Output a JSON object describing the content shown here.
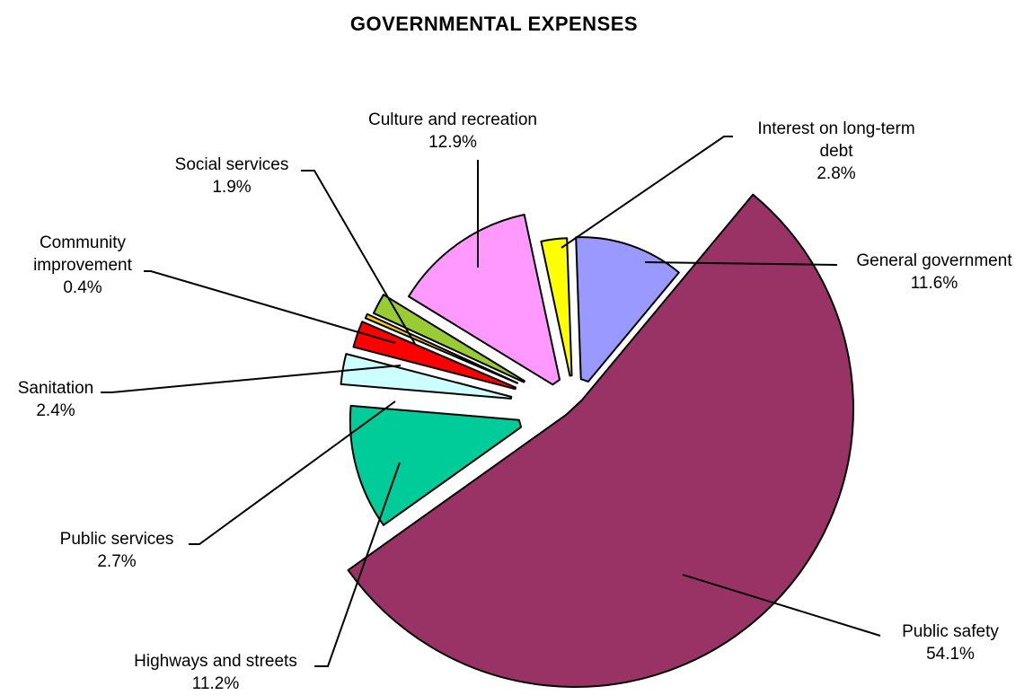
{
  "chart_data": {
    "type": "pie",
    "title": "GOVERNMENTAL EXPENSES",
    "exploded": true,
    "slices": [
      {
        "label": "General government",
        "value": 11.6,
        "value_label": "11.6%",
        "color": "#9999ff"
      },
      {
        "label": "Public safety",
        "value": 54.1,
        "value_label": "54.1%",
        "color": "#993366"
      },
      {
        "label": "Highways and streets",
        "value": 11.2,
        "value_label": "11.2%",
        "color": "#00cc99"
      },
      {
        "label": "Public services",
        "value": 2.7,
        "value_label": "2.7%",
        "color": "#ccffff"
      },
      {
        "label": "Sanitation",
        "value": 2.4,
        "value_label": "2.4%",
        "color": "#ff0000"
      },
      {
        "label": "Community improvement",
        "value": 0.4,
        "value_label": "0.4%",
        "color": "#ffcc00"
      },
      {
        "label": "Social services",
        "value": 1.9,
        "value_label": "1.9%",
        "color": "#99cc33"
      },
      {
        "label": "Culture and recreation",
        "value": 12.9,
        "value_label": "12.9%",
        "color": "#ff99ff"
      },
      {
        "label": "Interest on long-term debt",
        "value": 2.8,
        "value_label": "2.8%",
        "color": "#ffff00"
      }
    ]
  }
}
